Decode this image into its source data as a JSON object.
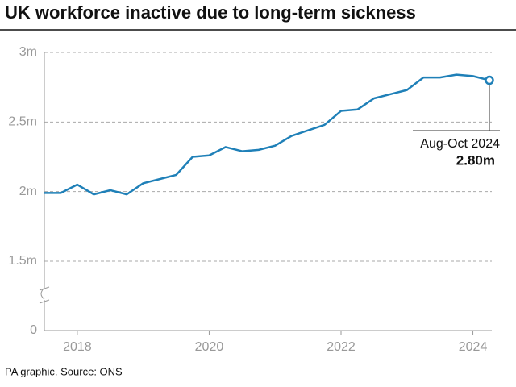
{
  "chart_data": {
    "type": "line",
    "title": "UK workforce inactive due to long-term sickness",
    "source": "PA graphic. Source: ONS",
    "annotation": "Aug-Oct 2024",
    "x": [
      2017.5,
      2017.75,
      2018,
      2018.25,
      2018.5,
      2018.75,
      2019,
      2019.25,
      2019.5,
      2019.75,
      2020,
      2020.25,
      2020.5,
      2020.75,
      2021,
      2021.25,
      2021.5,
      2021.75,
      2022,
      2022.25,
      2022.5,
      2022.75,
      2023,
      2023.25,
      2023.5,
      2023.75,
      2024,
      2024.25
    ],
    "series": [
      {
        "color": "#1f80b8",
        "values": [
          1.99,
          1.99,
          2.05,
          1.98,
          2.01,
          1.98,
          2.06,
          2.09,
          2.12,
          2.25,
          2.26,
          2.32,
          2.29,
          2.3,
          2.33,
          2.4,
          2.44,
          2.48,
          2.58,
          2.59,
          2.67,
          2.7,
          2.73,
          2.82,
          2.82,
          2.84,
          2.83,
          2.8
        ],
        "value_labels": [
          null,
          null,
          null,
          null,
          null,
          null,
          null,
          null,
          null,
          null,
          null,
          null,
          null,
          null,
          null,
          null,
          null,
          null,
          null,
          null,
          null,
          null,
          null,
          null,
          null,
          null,
          null,
          "2.80m"
        ]
      }
    ],
    "xlim": [
      2017.5,
      2024.25
    ],
    "xticks": [
      2018,
      2020,
      2022,
      2024
    ],
    "ylim": [
      0,
      3
    ],
    "yticks": [
      {
        "value": 0,
        "label": "0"
      },
      {
        "value": 1.5,
        "label": "1.5m"
      },
      {
        "value": 2,
        "label": "2m"
      },
      {
        "value": 2.5,
        "label": "2.5m"
      },
      {
        "value": 3,
        "label": "3m"
      }
    ],
    "axis_break": true,
    "grid": true
  }
}
